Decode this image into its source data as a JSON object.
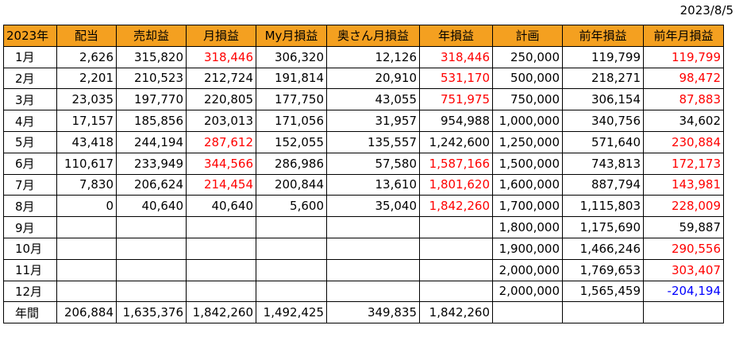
{
  "date": "2023/8/5",
  "headers": [
    "2023年",
    "配当",
    "売却益",
    "月損益",
    "My月損益",
    "奥さん月損益",
    "年損益",
    "計画",
    "前年損益",
    "前年月損益"
  ],
  "rows": [
    {
      "label": "1月",
      "cells": [
        "2,626",
        "315,820",
        "318,446",
        "306,320",
        "12,126",
        "318,446",
        "250,000",
        "119,799",
        "119,799"
      ]
    },
    {
      "label": "2月",
      "cells": [
        "2,201",
        "210,523",
        "212,724",
        "191,814",
        "20,910",
        "531,170",
        "500,000",
        "218,271",
        "98,472"
      ]
    },
    {
      "label": "3月",
      "cells": [
        "23,035",
        "197,770",
        "220,805",
        "177,750",
        "43,055",
        "751,975",
        "750,000",
        "306,154",
        "87,883"
      ]
    },
    {
      "label": "4月",
      "cells": [
        "17,157",
        "185,856",
        "203,013",
        "171,056",
        "31,957",
        "954,988",
        "1,000,000",
        "340,756",
        "34,602"
      ]
    },
    {
      "label": "5月",
      "cells": [
        "43,418",
        "244,194",
        "287,612",
        "152,055",
        "135,557",
        "1,242,600",
        "1,250,000",
        "571,640",
        "230,884"
      ]
    },
    {
      "label": "6月",
      "cells": [
        "110,617",
        "233,949",
        "344,566",
        "286,986",
        "57,580",
        "1,587,166",
        "1,500,000",
        "743,813",
        "172,173"
      ]
    },
    {
      "label": "7月",
      "cells": [
        "7,830",
        "206,624",
        "214,454",
        "200,844",
        "13,610",
        "1,801,620",
        "1,600,000",
        "887,794",
        "143,981"
      ]
    },
    {
      "label": "8月",
      "cells": [
        "0",
        "40,640",
        "40,640",
        "5,600",
        "35,040",
        "1,842,260",
        "1,700,000",
        "1,115,803",
        "228,009"
      ]
    },
    {
      "label": "9月",
      "cells": [
        "",
        "",
        "",
        "",
        "",
        "",
        "1,800,000",
        "1,175,690",
        "59,887"
      ]
    },
    {
      "label": "10月",
      "cells": [
        "",
        "",
        "",
        "",
        "",
        "",
        "1,900,000",
        "1,466,246",
        "290,556"
      ]
    },
    {
      "label": "11月",
      "cells": [
        "",
        "",
        "",
        "",
        "",
        "",
        "2,000,000",
        "1,769,653",
        "303,407"
      ]
    },
    {
      "label": "12月",
      "cells": [
        "",
        "",
        "",
        "",
        "",
        "",
        "2,000,000",
        "1,565,459",
        "-204,194"
      ]
    },
    {
      "label": "年間",
      "cells": [
        "206,884",
        "1,635,376",
        "1,842,260",
        "1,492,425",
        "349,835",
        "1,842,260",
        "",
        "",
        ""
      ]
    }
  ],
  "colors": {
    "header_bg": "#f4a020",
    "highlight_red": "#ff0000",
    "negative_blue": "#0000ff"
  }
}
